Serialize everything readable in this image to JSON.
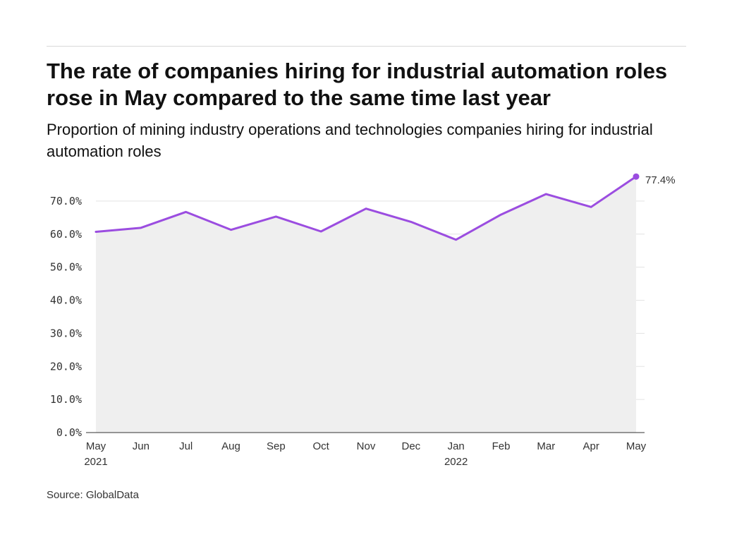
{
  "title": "The rate of companies hiring for industrial automation roles rose in May compared to the same time last year",
  "subtitle": "Proportion of mining industry operations and technologies companies hiring for industrial automation roles",
  "source": "Source: GlobalData",
  "colors": {
    "line": "#9b4de0",
    "area": "#efefef",
    "grid": "#e3e3e3",
    "axis": "#333333"
  },
  "chart_data": {
    "type": "area",
    "title": "The rate of companies hiring for industrial automation roles rose in May compared to the same time last year",
    "xlabel": "",
    "ylabel": "",
    "categories": [
      "May",
      "Jun",
      "Jul",
      "Aug",
      "Sep",
      "Oct",
      "Nov",
      "Dec",
      "Jan",
      "Feb",
      "Mar",
      "Apr",
      "May"
    ],
    "category_sublabels": [
      "2021",
      "",
      "",
      "",
      "",
      "",
      "",
      "",
      "2022",
      "",
      "",
      "",
      ""
    ],
    "series": [
      {
        "name": "Proportion of companies hiring for industrial automation roles",
        "values": [
          60.7,
          61.9,
          66.7,
          61.3,
          65.3,
          60.8,
          67.7,
          63.7,
          58.3,
          65.9,
          72.1,
          68.2,
          77.4
        ]
      }
    ],
    "ylim": [
      0,
      80
    ],
    "yticks": [
      0,
      10,
      20,
      30,
      40,
      50,
      60,
      70
    ],
    "ytick_labels": [
      "0.0%",
      "10.0%",
      "20.0%",
      "30.0%",
      "40.0%",
      "50.0%",
      "60.0%",
      "70.0%"
    ],
    "end_label": "77.4%",
    "grid": true
  }
}
